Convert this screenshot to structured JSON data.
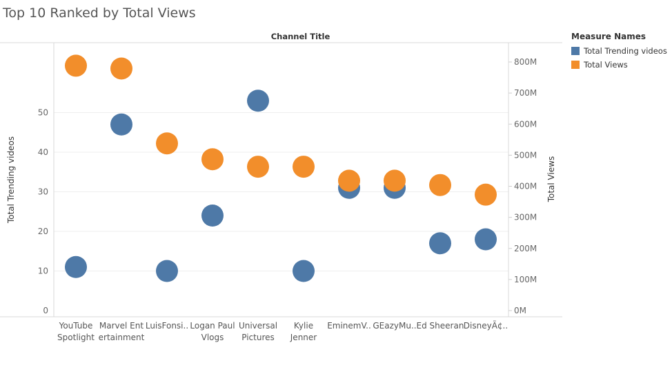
{
  "title": "Top 10 Ranked by Total Views",
  "legend": {
    "title": "Measure Names",
    "items": [
      {
        "label": "Total Trending videos",
        "color": "#4e79a7"
      },
      {
        "label": "Total Views",
        "color": "#f28e2b"
      }
    ]
  },
  "chart_data": {
    "type": "scatter",
    "title": "Top 10 Ranked by Total Views",
    "xlabel": "Channel Title",
    "ylabel": "Total Trending videos",
    "y2label": "Total Views",
    "categories": [
      [
        "YouTube",
        "Spotlight"
      ],
      [
        "Marvel Ent",
        "ertainment"
      ],
      [
        "LuisFonsi.."
      ],
      [
        "Logan Paul",
        "Vlogs"
      ],
      [
        "Universal",
        "Pictures"
      ],
      [
        "Kylie",
        "Jenner"
      ],
      [
        "EminemV.."
      ],
      [
        "GEazyMu.."
      ],
      [
        "Ed Sheeran"
      ],
      [
        "DisneyÃ¢.."
      ]
    ],
    "ylim": [
      0,
      58
    ],
    "y_ticks": [
      0,
      10,
      20,
      30,
      40,
      50
    ],
    "y2lim": [
      0,
      800
    ],
    "y2_ticks": [
      0,
      100,
      200,
      300,
      400,
      500,
      600,
      700,
      800
    ],
    "y2_tick_labels": [
      "0M",
      "100M",
      "200M",
      "300M",
      "400M",
      "500M",
      "600M",
      "700M",
      "800M"
    ],
    "y2_max": 845,
    "series": [
      {
        "name": "Total Trending videos",
        "axis": "left",
        "color": "#4e79a7",
        "values": [
          11,
          47,
          10,
          24,
          53,
          10,
          31,
          31,
          17,
          18
        ]
      },
      {
        "name": "Total Views",
        "axis": "right",
        "unit": "M",
        "color": "#f28e2b",
        "values": [
          788,
          779,
          538,
          487,
          463,
          463,
          418,
          418,
          404,
          373
        ]
      }
    ],
    "grid": true,
    "legend_position": "right"
  }
}
